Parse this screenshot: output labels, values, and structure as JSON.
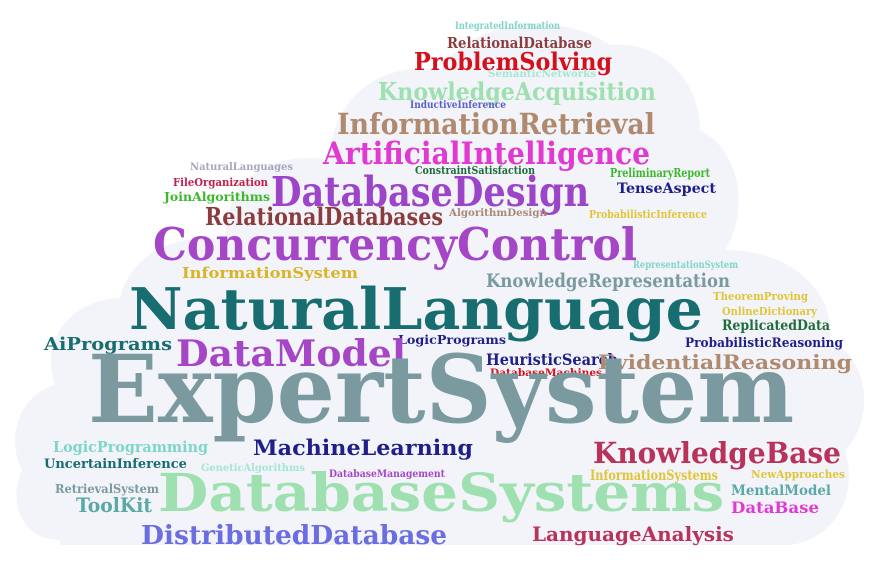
{
  "cloud": {
    "fill": "#f3f4f9",
    "words": [
      {
        "text": "IntegratedInformation",
        "color": "#7fd6c8"
      },
      {
        "text": "RelationalDatabase",
        "color": "#8b3d3d"
      },
      {
        "text": "ProblemSolving",
        "color": "#d4101c"
      },
      {
        "text": "SemanticNetworks",
        "color": "#a6e6d2"
      },
      {
        "text": "KnowledgeAcquisition",
        "color": "#9ee0b0"
      },
      {
        "text": "InductiveInference",
        "color": "#5a5ec8"
      },
      {
        "text": "InformationRetrieval",
        "color": "#b08a6e"
      },
      {
        "text": "ArtificialIntelligence",
        "color": "#e03ad2"
      },
      {
        "text": "NaturalLanguages",
        "color": "#a6a6c0"
      },
      {
        "text": "ConstraintSatisfaction",
        "color": "#1f6b3a"
      },
      {
        "text": "PreliminaryReport",
        "color": "#3db82d"
      },
      {
        "text": "FileOrganization",
        "color": "#c0204a"
      },
      {
        "text": "TenseAspect",
        "color": "#1f1f8a"
      },
      {
        "text": "JoinAlgorithms",
        "color": "#3db82d"
      },
      {
        "text": "DatabaseDesign",
        "color": "#9c45c9"
      },
      {
        "text": "AlgorithmDesign",
        "color": "#a88a78"
      },
      {
        "text": "ProbabilisticInference",
        "color": "#e0c53a"
      },
      {
        "text": "RelationalDatabases",
        "color": "#8b3d3d"
      },
      {
        "text": "ConcurrencyControl",
        "color": "#a546c6"
      },
      {
        "text": "InformationSystem",
        "color": "#d9b425"
      },
      {
        "text": "RepresentationSystem",
        "color": "#7fd6c8"
      },
      {
        "text": "KnowledgeRepresentation",
        "color": "#7a9aa0"
      },
      {
        "text": "NaturalLanguage",
        "color": "#176d70"
      },
      {
        "text": "TheoremProving",
        "color": "#e0c53a"
      },
      {
        "text": "OnlineDictionary",
        "color": "#e0c53a"
      },
      {
        "text": "ReplicatedData",
        "color": "#1f6b3a"
      },
      {
        "text": "AiPrograms",
        "color": "#176d70"
      },
      {
        "text": "LogicPrograms",
        "color": "#1f1f8a"
      },
      {
        "text": "DataModel",
        "color": "#a546c6"
      },
      {
        "text": "ProbabilisticReasoning",
        "color": "#1f1f8a"
      },
      {
        "text": "HeuristicSearch",
        "color": "#1f1f8a"
      },
      {
        "text": "EvidentialReasoning",
        "color": "#b08a6e"
      },
      {
        "text": "DatabaseMachines",
        "color": "#d4101c"
      },
      {
        "text": "ExpertSystem",
        "color": "#7a9aa0"
      },
      {
        "text": "LogicProgramming",
        "color": "#7fd6c8"
      },
      {
        "text": "MachineLearning",
        "color": "#1f1f8a"
      },
      {
        "text": "KnowledgeBase",
        "color": "#b8325a"
      },
      {
        "text": "UncertainInference",
        "color": "#176d70"
      },
      {
        "text": "GeneticAlgorithms",
        "color": "#a6e6d2"
      },
      {
        "text": "DatabaseManagement",
        "color": "#a546c6"
      },
      {
        "text": "NewApproaches",
        "color": "#e0c53a"
      },
      {
        "text": "InformationSystems",
        "color": "#e0c53a"
      },
      {
        "text": "RetrievalSystem",
        "color": "#7a9aa0"
      },
      {
        "text": "DatabaseSystems",
        "color": "#9ee0b0"
      },
      {
        "text": "MentalModel",
        "color": "#5aa8a8"
      },
      {
        "text": "ToolKit",
        "color": "#5aa8a8"
      },
      {
        "text": "DataBase",
        "color": "#e03ad2"
      },
      {
        "text": "DistributedDatabase",
        "color": "#6a6ee0"
      },
      {
        "text": "LanguageAnalysis",
        "color": "#b8325a"
      }
    ]
  }
}
